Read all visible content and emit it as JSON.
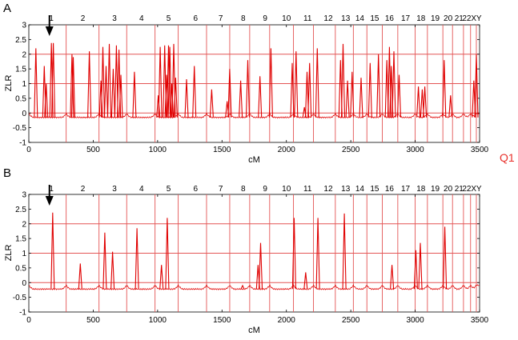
{
  "figure": {
    "side_label": "Q1",
    "side_label_color": "#e8302a",
    "trace_color": "#e00000",
    "line_color": "#e45555",
    "arrow_color": "#000000"
  },
  "chart_data": [
    {
      "type": "line",
      "panel_label": "A",
      "title": "",
      "xlabel": "cM",
      "ylabel": "ZLR",
      "xlim": [
        0,
        3500
      ],
      "ylim": [
        -1,
        3
      ],
      "xticks": [
        0,
        500,
        1000,
        1500,
        2000,
        2500,
        3000,
        3500
      ],
      "yticks": [
        -1,
        -0.5,
        0,
        0.5,
        1,
        1.5,
        2,
        2.5,
        3
      ],
      "reference_lines_y": [
        0,
        1,
        2
      ],
      "chromosome_labels": [
        "1",
        "2",
        "3",
        "4",
        "5",
        "6",
        "7",
        "8",
        "9",
        "10",
        "11",
        "12",
        "13",
        "14",
        "15",
        "16",
        "17",
        "18",
        "19",
        "20",
        "21",
        "22",
        "X",
        "Y"
      ],
      "chromosome_label_cM": [
        175,
        420,
        665,
        875,
        1085,
        1295,
        1490,
        1665,
        1835,
        2000,
        2165,
        2325,
        2460,
        2570,
        2685,
        2800,
        2925,
        3045,
        3155,
        3255,
        3340,
        3400,
        3455,
        3495
      ],
      "chromosome_boundaries_cM": [
        290,
        545,
        760,
        980,
        1160,
        1380,
        1560,
        1715,
        1870,
        2055,
        2210,
        2380,
        2520,
        2625,
        2745,
        2865,
        3000,
        3095,
        3215,
        3290,
        3375,
        3430,
        3475,
        3500
      ],
      "arrow_cM": 160,
      "baseline": -0.15,
      "peaks": [
        {
          "x": 55,
          "y": 2.2
        },
        {
          "x": 120,
          "y": 1.6
        },
        {
          "x": 135,
          "y": 1.0
        },
        {
          "x": 175,
          "y": 2.38
        },
        {
          "x": 190,
          "y": 2.38
        },
        {
          "x": 335,
          "y": 2.0
        },
        {
          "x": 345,
          "y": 1.9
        },
        {
          "x": 470,
          "y": 2.1
        },
        {
          "x": 560,
          "y": 1.1
        },
        {
          "x": 575,
          "y": 2.25
        },
        {
          "x": 600,
          "y": 1.6
        },
        {
          "x": 625,
          "y": 2.35
        },
        {
          "x": 655,
          "y": 1.5
        },
        {
          "x": 680,
          "y": 2.3
        },
        {
          "x": 700,
          "y": 2.15
        },
        {
          "x": 715,
          "y": 1.3
        },
        {
          "x": 820,
          "y": 1.4
        },
        {
          "x": 1005,
          "y": 0.6
        },
        {
          "x": 1020,
          "y": 2.25
        },
        {
          "x": 1055,
          "y": 2.3
        },
        {
          "x": 1070,
          "y": 1.3
        },
        {
          "x": 1085,
          "y": 2.3
        },
        {
          "x": 1095,
          "y": 2.25
        },
        {
          "x": 1110,
          "y": 1.0
        },
        {
          "x": 1125,
          "y": 2.35
        },
        {
          "x": 1140,
          "y": 1.2
        },
        {
          "x": 1225,
          "y": 1.15
        },
        {
          "x": 1285,
          "y": 1.6
        },
        {
          "x": 1420,
          "y": 0.8
        },
        {
          "x": 1540,
          "y": 0.4
        },
        {
          "x": 1560,
          "y": 1.5
        },
        {
          "x": 1645,
          "y": 1.1
        },
        {
          "x": 1700,
          "y": 1.8
        },
        {
          "x": 1795,
          "y": 1.25
        },
        {
          "x": 1880,
          "y": 2.2
        },
        {
          "x": 2045,
          "y": 1.7
        },
        {
          "x": 2075,
          "y": 2.1
        },
        {
          "x": 2140,
          "y": 0.2
        },
        {
          "x": 2160,
          "y": 1.4
        },
        {
          "x": 2180,
          "y": 1.7
        },
        {
          "x": 2240,
          "y": 2.2
        },
        {
          "x": 2420,
          "y": 1.8
        },
        {
          "x": 2440,
          "y": 2.35
        },
        {
          "x": 2475,
          "y": 1.1
        },
        {
          "x": 2510,
          "y": 1.4
        },
        {
          "x": 2580,
          "y": 1.2
        },
        {
          "x": 2650,
          "y": 1.7
        },
        {
          "x": 2715,
          "y": 2.0
        },
        {
          "x": 2780,
          "y": 1.8
        },
        {
          "x": 2800,
          "y": 2.25
        },
        {
          "x": 2815,
          "y": 1.6
        },
        {
          "x": 2835,
          "y": 2.1
        },
        {
          "x": 2875,
          "y": 1.3
        },
        {
          "x": 3025,
          "y": 0.9
        },
        {
          "x": 3055,
          "y": 0.8
        },
        {
          "x": 3075,
          "y": 0.9
        },
        {
          "x": 3225,
          "y": 1.8
        },
        {
          "x": 3275,
          "y": 0.6
        },
        {
          "x": 3455,
          "y": 1.1
        },
        {
          "x": 3475,
          "y": 2.0
        }
      ]
    },
    {
      "type": "line",
      "panel_label": "B",
      "title": "",
      "xlabel": "cM",
      "ylabel": "ZLR",
      "xlim": [
        0,
        3500
      ],
      "ylim": [
        -1,
        3
      ],
      "xticks": [
        0,
        500,
        1000,
        1500,
        2000,
        2500,
        3000,
        3500
      ],
      "yticks": [
        -1,
        -0.5,
        0,
        0.5,
        1,
        1.5,
        2,
        2.5,
        3
      ],
      "reference_lines_y": [
        0,
        1,
        2
      ],
      "chromosome_labels": [
        "1",
        "2",
        "3",
        "4",
        "5",
        "6",
        "7",
        "8",
        "9",
        "10",
        "11",
        "12",
        "13",
        "14",
        "15",
        "16",
        "17",
        "18",
        "19",
        "20",
        "21",
        "22",
        "X",
        "Y"
      ],
      "chromosome_label_cM": [
        175,
        420,
        665,
        875,
        1085,
        1295,
        1490,
        1665,
        1835,
        2000,
        2165,
        2325,
        2460,
        2570,
        2685,
        2800,
        2925,
        3045,
        3155,
        3255,
        3340,
        3400,
        3455,
        3495
      ],
      "chromosome_boundaries_cM": [
        290,
        545,
        760,
        980,
        1160,
        1380,
        1560,
        1715,
        1870,
        2055,
        2210,
        2380,
        2520,
        2625,
        2745,
        2865,
        3000,
        3095,
        3215,
        3290,
        3375,
        3430,
        3475,
        3500
      ],
      "arrow_cM": 160,
      "baseline": -0.22,
      "peaks": [
        {
          "x": 185,
          "y": 2.38
        },
        {
          "x": 400,
          "y": 0.65
        },
        {
          "x": 590,
          "y": 1.7
        },
        {
          "x": 650,
          "y": 1.05
        },
        {
          "x": 840,
          "y": 1.85
        },
        {
          "x": 1030,
          "y": 0.6
        },
        {
          "x": 1075,
          "y": 2.2
        },
        {
          "x": 1660,
          "y": -0.1
        },
        {
          "x": 1780,
          "y": 0.6
        },
        {
          "x": 1800,
          "y": 1.35
        },
        {
          "x": 2060,
          "y": 2.2
        },
        {
          "x": 2150,
          "y": 0.35
        },
        {
          "x": 2245,
          "y": 2.2
        },
        {
          "x": 2450,
          "y": 2.35
        },
        {
          "x": 2820,
          "y": 0.6
        },
        {
          "x": 3005,
          "y": 1.1
        },
        {
          "x": 3040,
          "y": 1.35
        },
        {
          "x": 3230,
          "y": 1.9
        }
      ]
    }
  ]
}
